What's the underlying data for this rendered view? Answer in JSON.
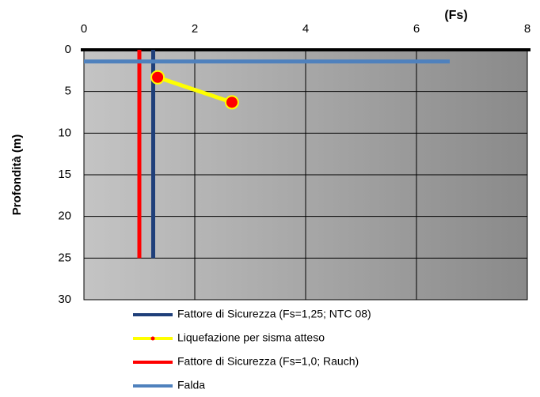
{
  "chart_data": {
    "type": "line",
    "title": "(Fs)",
    "y_label": "Profondità (m)",
    "xlim": [
      0,
      8
    ],
    "xticks": [
      0,
      2,
      4,
      6,
      8
    ],
    "ylim": [
      0,
      30
    ],
    "yticks": [
      0,
      5,
      10,
      15,
      20,
      25,
      30
    ],
    "y_inverted": true,
    "x_axis_position": "top",
    "grid": true,
    "legend": "bottom",
    "series": [
      {
        "name": "Fattore di Sicurezza (Fs=1,25; NTC 08)",
        "color": "#1f3f7a",
        "x": [
          1.25,
          1.25
        ],
        "values": [
          0,
          25
        ]
      },
      {
        "name": "Liquefazione per sisma atteso",
        "color": "#ffff00",
        "marker_color": "#ff0000",
        "marker": true,
        "x": [
          1.33,
          2.67
        ],
        "values": [
          3.3,
          6.3
        ]
      },
      {
        "name": "Fattore di Sicurezza (Fs=1,0; Rauch)",
        "color": "#ff0000",
        "x": [
          1.0,
          1.0
        ],
        "values": [
          0,
          25
        ]
      },
      {
        "name": "Falda",
        "color": "#4f81bd",
        "x": [
          0,
          6.6
        ],
        "values": [
          1.4,
          1.4
        ]
      }
    ]
  }
}
